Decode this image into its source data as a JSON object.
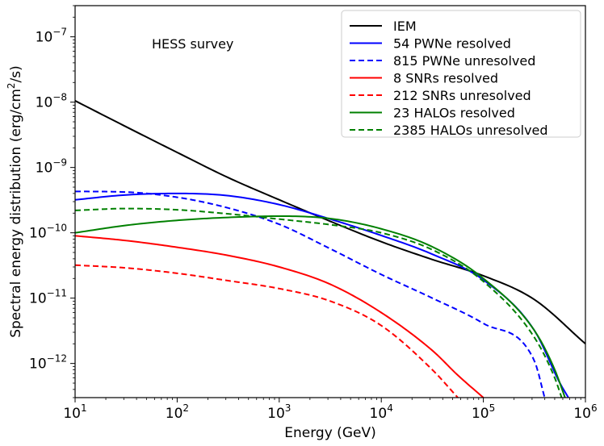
{
  "chart_data": {
    "type": "line",
    "xscale": "log",
    "yscale": "log",
    "xlim": [
      10,
      1000000
    ],
    "ylim": [
      3e-13,
      3e-07
    ],
    "xlabel": "Energy (GeV)",
    "ylabel": {
      "prefix": "Spectral energy distribution (erg/cm",
      "sup": "2",
      "suffix": "/s)"
    },
    "annotation": "HESS survey",
    "legend_position": "top-right",
    "x_ticks": [
      {
        "value": 10,
        "base": "10",
        "exp": "1"
      },
      {
        "value": 100,
        "base": "10",
        "exp": "2"
      },
      {
        "value": 1000,
        "base": "10",
        "exp": "3"
      },
      {
        "value": 10000,
        "base": "10",
        "exp": "4"
      },
      {
        "value": 100000,
        "base": "10",
        "exp": "5"
      },
      {
        "value": 1000000,
        "base": "10",
        "exp": "6"
      }
    ],
    "y_ticks": [
      {
        "value": 1e-12,
        "base": "10",
        "exp": "−12"
      },
      {
        "value": 1e-11,
        "base": "10",
        "exp": "−11"
      },
      {
        "value": 1e-10,
        "base": "10",
        "exp": "−10"
      },
      {
        "value": 1e-09,
        "base": "10",
        "exp": "−9"
      },
      {
        "value": 1e-08,
        "base": "10",
        "exp": "−8"
      },
      {
        "value": 1e-07,
        "base": "10",
        "exp": "−7"
      }
    ],
    "series": [
      {
        "name": "IEM",
        "color": "#000000",
        "dash": "solid",
        "x": [
          10,
          31.6,
          100,
          316,
          1000,
          3162,
          10000,
          31623,
          100000,
          316228,
          1000000
        ],
        "y": [
          1.05e-08,
          4.2e-09,
          1.7e-09,
          7e-10,
          3.2e-10,
          1.5e-10,
          7.3e-11,
          3.9e-11,
          2.2e-11,
          9.5e-12,
          2e-12
        ]
      },
      {
        "name": "54 PWNe resolved",
        "color": "#0000ff",
        "dash": "solid",
        "x": [
          10,
          31.6,
          100,
          316,
          1000,
          3162,
          10000,
          31623,
          100000,
          316228,
          562341,
          681292
        ],
        "y": [
          3.2e-10,
          3.8e-10,
          4e-10,
          3.7e-10,
          2.7e-10,
          1.62e-10,
          9.1e-11,
          4.7e-11,
          1.9e-11,
          3.2e-12,
          5e-13,
          3e-13
        ]
      },
      {
        "name": "815 PWNe unresolved",
        "color": "#0000ff",
        "dash": "dashed",
        "x": [
          10,
          31.6,
          100,
          316,
          1000,
          3162,
          10000,
          31623,
          100000,
          316228,
          398107
        ],
        "y": [
          4.3e-10,
          4.2e-10,
          3.5e-10,
          2.4e-10,
          1.35e-10,
          5.7e-11,
          2.3e-11,
          1e-11,
          4.1e-12,
          1.1e-12,
          3e-13
        ]
      },
      {
        "name": "8 SNRs resolved",
        "color": "#ff0000",
        "dash": "solid",
        "x": [
          10,
          31.6,
          100,
          316,
          1000,
          3162,
          10000,
          31623,
          56234,
          100000
        ],
        "y": [
          9e-11,
          7.6e-11,
          6e-11,
          4.5e-11,
          3e-11,
          1.63e-11,
          6e-12,
          1.58e-12,
          6.6e-13,
          3e-13
        ]
      },
      {
        "name": "212 SNRs unresolved",
        "color": "#ff0000",
        "dash": "dashed",
        "x": [
          10,
          31.6,
          100,
          316,
          1000,
          3162,
          10000,
          31623,
          56234
        ],
        "y": [
          3.2e-11,
          2.9e-11,
          2.4e-11,
          1.85e-11,
          1.4e-11,
          9e-12,
          3.8e-12,
          8e-13,
          3e-13
        ]
      },
      {
        "name": "23 HALOs resolved",
        "color": "#008000",
        "dash": "solid",
        "x": [
          10,
          31.6,
          100,
          316,
          1000,
          3162,
          10000,
          31623,
          100000,
          316228,
          501187,
          630957
        ],
        "y": [
          1e-10,
          1.3e-10,
          1.55e-10,
          1.72e-10,
          1.8e-10,
          1.65e-10,
          1.15e-10,
          6.1e-11,
          2e-11,
          3.2e-12,
          8e-13,
          3e-13
        ]
      },
      {
        "name": "2385 HALOs unresolved",
        "color": "#008000",
        "dash": "dashed",
        "x": [
          10,
          31.6,
          100,
          316,
          1000,
          3162,
          10000,
          31623,
          100000,
          316228,
          501187,
          584893
        ],
        "y": [
          2.2e-10,
          2.35e-10,
          2.25e-10,
          1.95e-10,
          1.62e-10,
          1.33e-10,
          1e-10,
          5.5e-11,
          1.8e-11,
          2.5e-12,
          6e-13,
          3e-13
        ]
      }
    ]
  }
}
